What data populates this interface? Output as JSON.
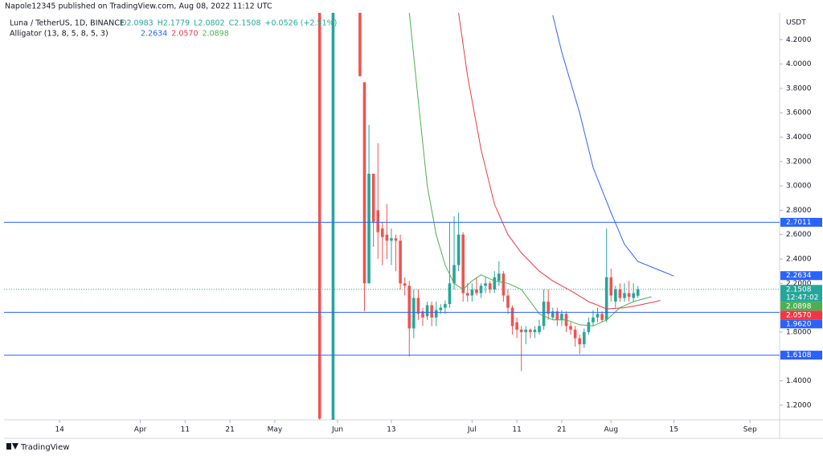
{
  "chart_data": {
    "type": "candlestick",
    "publisher": "Napole12345 published on TradingView.com, Aug 08, 2022 11:12 UTC",
    "symbol": "Luna / TetherUS, 1D, BINANCE",
    "ohlc": [
      "O2.0983",
      "H2.1779",
      "L2.0802",
      "C2.1508",
      "+0.0526 (+2.51%)"
    ],
    "indicator": "Alligator (13, 8, 5, 8, 5, 3)",
    "indicator_values": [
      "2.2634",
      "2.0570",
      "2.0898"
    ],
    "y_unit": "USDT",
    "footer": "TradingView",
    "up_color": "#26a69a",
    "down_color": "#ef5350",
    "xlim": [
      -74.4,
      98.6
    ],
    "ylim": [
      1.08,
      4.42
    ],
    "xticks": [
      {
        "value": -62,
        "label": "14"
      },
      {
        "value": -44,
        "label": "Apr"
      },
      {
        "value": -34,
        "label": "11"
      },
      {
        "value": -24,
        "label": "21"
      },
      {
        "value": -14,
        "label": "May"
      },
      {
        "value": 0,
        "label": "Jun"
      },
      {
        "value": 12,
        "label": "13"
      },
      {
        "value": 30,
        "label": "Jul"
      },
      {
        "value": 40,
        "label": "11"
      },
      {
        "value": 50,
        "label": "21"
      },
      {
        "value": 61,
        "label": "Aug"
      },
      {
        "value": 75,
        "label": "15"
      },
      {
        "value": 92,
        "label": "Sep"
      }
    ],
    "yticks": [
      {
        "value": 1.2,
        "label": "1.2000"
      },
      {
        "value": 1.4,
        "label": "1.4000"
      },
      {
        "value": 1.6,
        "label": "1.6000"
      },
      {
        "value": 1.8,
        "label": "1.8000"
      },
      {
        "value": 2.2,
        "label": "2.2000"
      },
      {
        "value": 2.4,
        "label": "2.4000"
      },
      {
        "value": 2.6,
        "label": "2.6000"
      },
      {
        "value": 2.8,
        "label": "2.8000"
      },
      {
        "value": 3.0,
        "label": "3.0000"
      },
      {
        "value": 3.2,
        "label": "3.2000"
      },
      {
        "value": 3.4,
        "label": "3.4000"
      },
      {
        "value": 3.6,
        "label": "3.6000"
      },
      {
        "value": 3.8,
        "label": "3.8000"
      },
      {
        "value": 4.0,
        "label": "4.0000"
      },
      {
        "value": 4.2,
        "label": "4.2000"
      }
    ],
    "candles": {
      "x": [
        -4,
        -1,
        5,
        6,
        7,
        8,
        9,
        10,
        11,
        12,
        13,
        14,
        15,
        16,
        17,
        18,
        19,
        20,
        21,
        22,
        23,
        24,
        25,
        26,
        27,
        28,
        29,
        30,
        31,
        32,
        33,
        34,
        35,
        36,
        37,
        38,
        39,
        40,
        41,
        42,
        43,
        44,
        45,
        46,
        47,
        48,
        49,
        50,
        51,
        52,
        53,
        54,
        55,
        56,
        57,
        58,
        59,
        60,
        61,
        62,
        63,
        64,
        65,
        66,
        67
      ],
      "open": [
        4.42,
        1.08,
        4.42,
        3.85,
        2.2,
        3.1,
        2.8,
        2.65,
        2.6,
        2.55,
        2.57,
        2.55,
        2.2,
        2.18,
        1.83,
        2.08,
        1.97,
        1.93,
        2.02,
        1.92,
        1.98,
        2.0,
        2.03,
        2.2,
        2.35,
        2.6,
        2.12,
        2.1,
        2.15,
        2.12,
        2.18,
        2.2,
        2.15,
        2.22,
        2.28,
        2.1,
        2.0,
        1.88,
        1.82,
        1.8,
        1.82,
        1.8,
        1.8,
        1.85,
        2.05,
        1.92,
        1.97,
        1.9,
        1.95,
        1.85,
        1.82,
        1.75,
        1.7,
        1.8,
        1.88,
        1.92,
        1.95,
        1.9,
        2.25,
        2.05,
        2.15,
        2.08,
        2.12,
        2.08,
        2.0983
      ],
      "high": [
        4.42,
        4.42,
        4.42,
        3.85,
        3.5,
        3.1,
        3.35,
        2.7,
        2.85,
        2.65,
        2.6,
        2.6,
        2.25,
        2.22,
        2.15,
        2.15,
        2.0,
        2.05,
        2.05,
        2.05,
        2.03,
        2.06,
        2.7,
        2.75,
        2.78,
        2.62,
        2.2,
        2.2,
        2.25,
        2.2,
        2.25,
        2.22,
        2.3,
        2.38,
        2.3,
        2.15,
        2.02,
        1.92,
        1.85,
        1.85,
        1.83,
        1.85,
        1.9,
        2.15,
        2.15,
        2.0,
        2.0,
        1.98,
        1.97,
        1.88,
        1.85,
        1.78,
        1.83,
        1.92,
        1.98,
        2.0,
        1.97,
        2.65,
        2.32,
        2.18,
        2.2,
        2.2,
        2.22,
        2.2,
        2.1779
      ],
      "low": [
        1.08,
        1.08,
        3.9,
        1.97,
        2.2,
        2.5,
        2.4,
        2.35,
        2.4,
        2.35,
        2.3,
        2.15,
        2.1,
        1.6,
        1.75,
        1.9,
        1.85,
        1.9,
        1.85,
        1.85,
        1.95,
        1.95,
        2.0,
        2.15,
        2.3,
        2.05,
        2.05,
        2.05,
        2.1,
        2.08,
        2.12,
        2.12,
        2.12,
        2.18,
        2.05,
        1.95,
        1.78,
        1.75,
        1.48,
        1.7,
        1.75,
        1.75,
        1.78,
        1.82,
        1.9,
        1.9,
        1.85,
        1.85,
        1.8,
        1.78,
        1.68,
        1.62,
        1.67,
        1.78,
        1.85,
        1.88,
        1.88,
        1.88,
        2.05,
        2.0,
        2.05,
        2.05,
        2.05,
        2.05,
        2.0802
      ],
      "close": [
        1.09,
        4.42,
        3.9,
        2.2,
        3.1,
        2.7,
        2.62,
        2.58,
        2.55,
        2.57,
        2.55,
        2.2,
        2.18,
        1.83,
        2.08,
        1.95,
        1.92,
        2.02,
        1.92,
        1.98,
        2.0,
        2.03,
        2.2,
        2.35,
        2.6,
        2.12,
        2.1,
        2.15,
        2.12,
        2.18,
        2.2,
        2.15,
        2.25,
        2.28,
        2.1,
        2.0,
        1.85,
        1.82,
        1.8,
        1.82,
        1.8,
        1.82,
        1.85,
        2.05,
        1.95,
        1.97,
        1.9,
        1.95,
        1.85,
        1.82,
        1.75,
        1.7,
        1.8,
        1.88,
        1.92,
        1.95,
        1.9,
        2.25,
        2.1,
        2.15,
        2.08,
        2.12,
        2.09,
        2.12,
        2.1508
      ]
    },
    "series": [
      {
        "name": "Jaw",
        "color": "#2962ff",
        "x": [
          48,
          50,
          54,
          57,
          61,
          64,
          67,
          71,
          75
        ],
        "values": [
          4.4,
          4.1,
          3.6,
          3.15,
          2.78,
          2.52,
          2.38,
          2.32,
          2.26
        ]
      },
      {
        "name": "Teeth",
        "color": "#f23645",
        "x": [
          27,
          29,
          32,
          35,
          38,
          41,
          45,
          48,
          52,
          56,
          60,
          64,
          67,
          71,
          72
        ],
        "values": [
          4.42,
          3.9,
          3.3,
          2.85,
          2.6,
          2.45,
          2.3,
          2.22,
          2.14,
          2.05,
          1.99,
          2.0,
          2.02,
          2.05,
          2.06
        ]
      },
      {
        "name": "Lips",
        "color": "#4caf50",
        "x": [
          16,
          18,
          20,
          22,
          24,
          26,
          28,
          30,
          32,
          35,
          38,
          41,
          43,
          45,
          48,
          51,
          54,
          57,
          60,
          63,
          66,
          69,
          70
        ],
        "values": [
          4.42,
          3.7,
          3.0,
          2.6,
          2.35,
          2.2,
          2.15,
          2.22,
          2.27,
          2.22,
          2.2,
          2.15,
          2.05,
          1.95,
          1.9,
          1.9,
          1.86,
          1.85,
          1.9,
          2.0,
          2.05,
          2.08,
          2.09
        ]
      }
    ],
    "hlines": [
      {
        "value": 2.7011,
        "label": "2.7011"
      },
      {
        "value": 1.962,
        "label": "1.9620"
      },
      {
        "value": 1.6108,
        "label": "1.6108"
      }
    ],
    "hline_color": "#2962ff",
    "last_price": {
      "value": 2.1508,
      "label": "2.1508",
      "countdown": "12:47:02",
      "color": "#26a69a"
    },
    "price_labels": [
      {
        "value": 2.2634,
        "label": "2.2634",
        "color": "#2962ff"
      },
      {
        "value": 2.0898,
        "label": "2.0898",
        "color": "#4caf50"
      },
      {
        "value": 2.057,
        "label": "2.0570",
        "color": "#f23645"
      }
    ]
  }
}
